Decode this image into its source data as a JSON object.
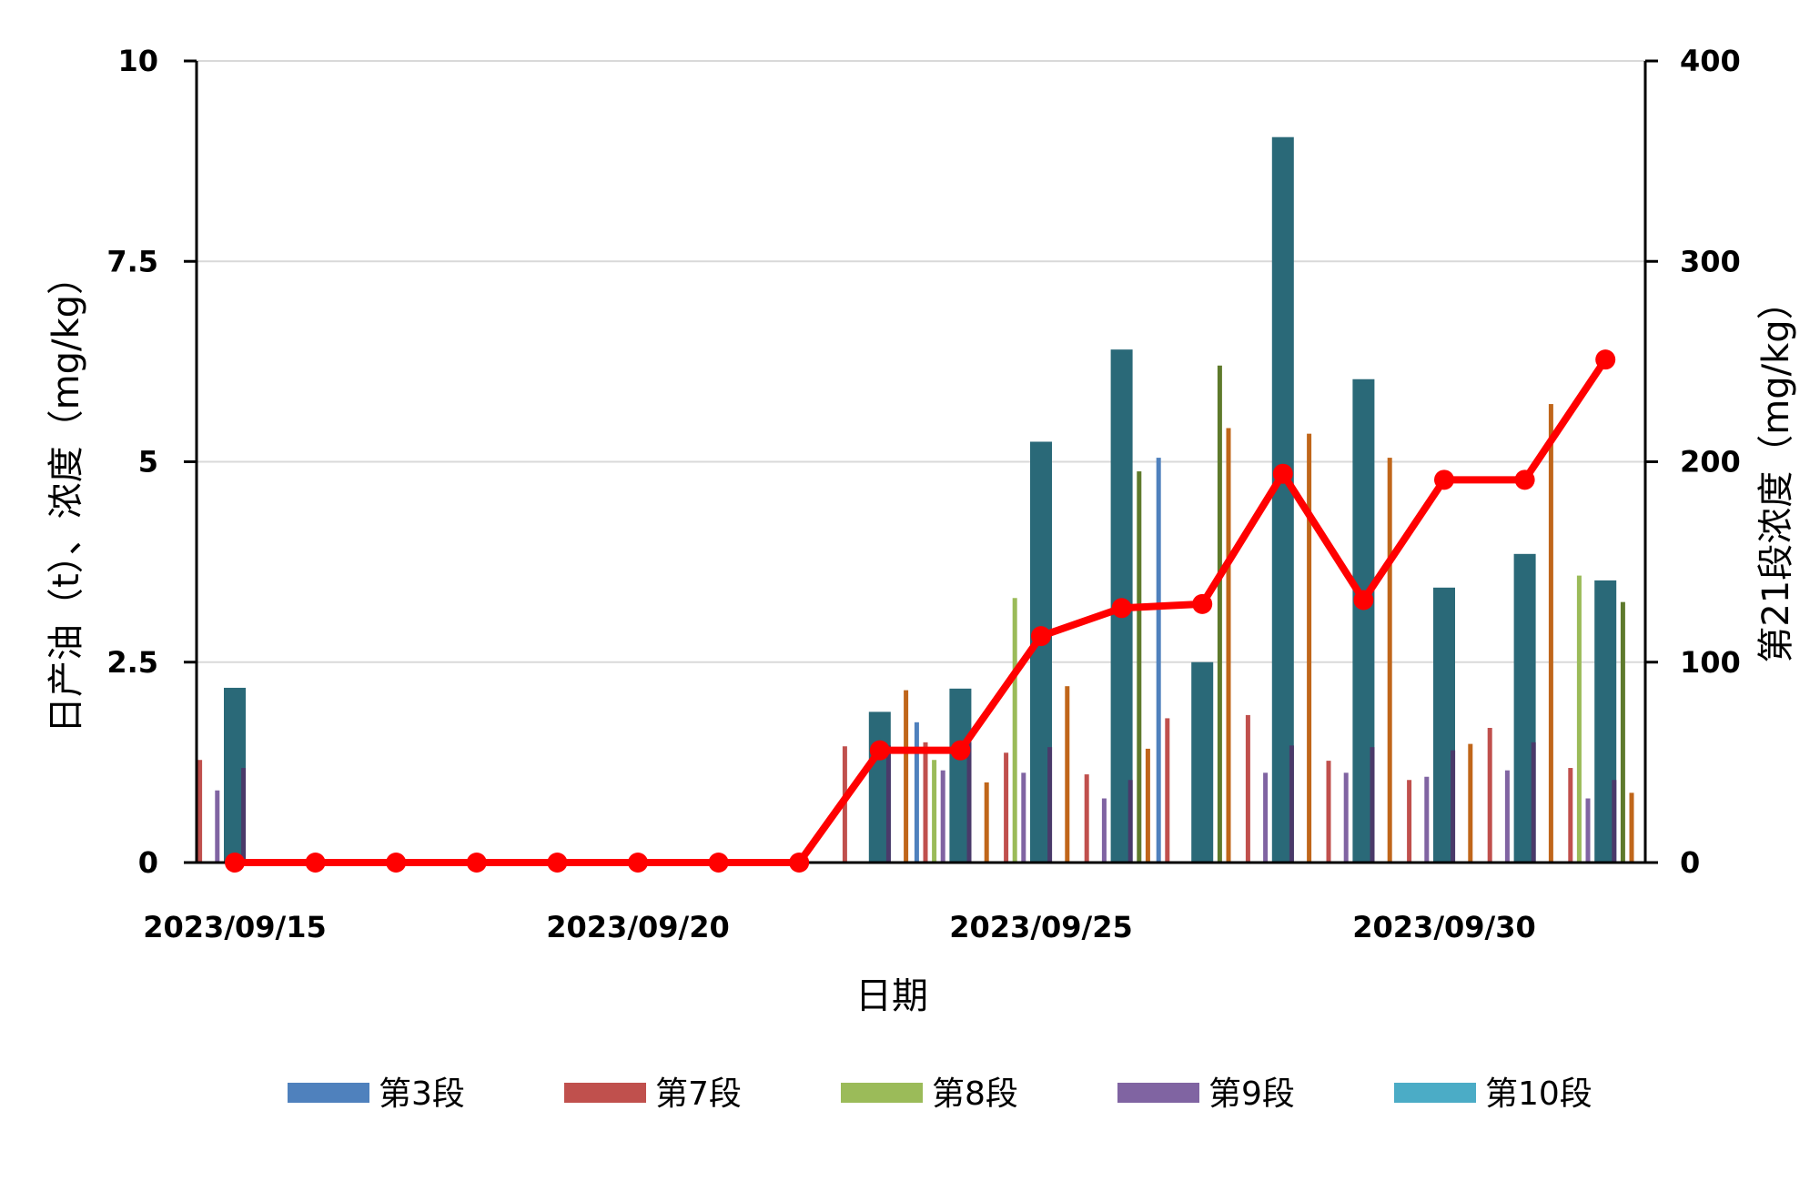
{
  "chart_data": {
    "type": "bar",
    "title": "",
    "xlabel": "日期",
    "ylabel": "日产油（t）、浓度（mg/kg）",
    "y2label": "第21段浓度（mg/kg）",
    "ylim": [
      0,
      10
    ],
    "y2lim": [
      0,
      400
    ],
    "yticks": [
      "0",
      "2.5",
      "5",
      "7.5",
      "10"
    ],
    "y2ticks": [
      "0",
      "100",
      "200",
      "300",
      "400"
    ],
    "x_tick_labels": [
      "2023/09/15",
      "2023/09/20",
      "2023/09/25",
      "2023/09/30"
    ],
    "x_tick_days": [
      0,
      5,
      10,
      15
    ],
    "x": [
      "2023/09/15",
      "2023/09/16",
      "2023/09/17",
      "2023/09/18",
      "2023/09/19",
      "2023/09/20",
      "2023/09/21",
      "2023/09/22",
      "2023/09/23",
      "2023/09/24",
      "2023/09/25",
      "2023/09/26",
      "2023/09/27",
      "2023/09/28",
      "2023/09/29",
      "2023/09/30",
      "2023/10/01",
      "2023/10/02"
    ],
    "grid": "horizontal",
    "legend_position": "bottom",
    "series": [
      {
        "name": "第3段",
        "color": "#4f81bd",
        "values": [
          0,
          0,
          0,
          0,
          0,
          0,
          0,
          0,
          0,
          1.75,
          0,
          0,
          5.05,
          0,
          0,
          0,
          0,
          0
        ]
      },
      {
        "name": "第7段",
        "color": "#c0504d",
        "values": [
          1.28,
          0,
          0,
          0,
          0,
          0,
          0,
          0,
          1.45,
          1.5,
          1.37,
          1.1,
          1.8,
          1.84,
          1.27,
          1.03,
          1.68,
          1.18
        ]
      },
      {
        "name": "第8段",
        "color": "#9bbb59",
        "values": [
          0,
          0,
          0,
          0,
          0,
          0,
          0,
          0,
          0,
          1.28,
          3.3,
          0,
          0,
          0,
          0,
          0,
          0,
          3.58
        ]
      },
      {
        "name": "第9段",
        "color": "#8064a2",
        "values": [
          0.9,
          0,
          0,
          0,
          0,
          0,
          0,
          0,
          0,
          1.15,
          1.12,
          0.8,
          0,
          1.12,
          1.12,
          1.07,
          1.15,
          0.8
        ]
      },
      {
        "name": "第10段",
        "color": "#4bacc6",
        "values": [
          0,
          0,
          0,
          0,
          0,
          0,
          0,
          0,
          0,
          0,
          0,
          0,
          0,
          0,
          0,
          0,
          0,
          0
        ]
      },
      {
        "name": "",
        "color": "#2a6978",
        "values": [
          2.18,
          0,
          0,
          0,
          0,
          0,
          0,
          0,
          1.88,
          2.17,
          5.25,
          6.4,
          2.5,
          9.05,
          6.03,
          3.43,
          3.85,
          3.52
        ]
      },
      {
        "name": "",
        "color": "#4a3a6a",
        "values": [
          1.18,
          0,
          0,
          0,
          0,
          0,
          0,
          0,
          1.46,
          1.5,
          1.44,
          1.03,
          0,
          1.46,
          1.44,
          1.4,
          1.5,
          1.03
        ]
      },
      {
        "name": "",
        "color": "#5e7a2c",
        "values": [
          0,
          0,
          0,
          0,
          0,
          0,
          0,
          0,
          0,
          0,
          0,
          4.88,
          6.2,
          0,
          0,
          0,
          0,
          3.25
        ]
      },
      {
        "name": "",
        "color": "#c0661a",
        "values": [
          0,
          0,
          0,
          0,
          0,
          0,
          0,
          0,
          2.15,
          1.0,
          2.2,
          1.42,
          5.42,
          5.35,
          5.05,
          1.48,
          5.72,
          0.87
        ]
      }
    ],
    "line_series": {
      "name": "第21段",
      "color": "#ff0000",
      "axis": "right",
      "x": [
        0,
        1,
        2,
        3,
        4,
        5,
        6,
        7,
        8,
        9,
        10,
        11,
        12,
        13,
        14,
        15,
        16,
        17
      ],
      "values": [
        0,
        0,
        0,
        0,
        0,
        0,
        0,
        0,
        56,
        56,
        113,
        127,
        129,
        194,
        131,
        191,
        191,
        251
      ]
    }
  },
  "legend": [
    {
      "label": "第3段",
      "color": "#4f81bd"
    },
    {
      "label": "第7段",
      "color": "#c0504d"
    },
    {
      "label": "第8段",
      "color": "#9bbb59"
    },
    {
      "label": "第9段",
      "color": "#8064a2"
    },
    {
      "label": "第10段",
      "color": "#4bacc6"
    }
  ]
}
